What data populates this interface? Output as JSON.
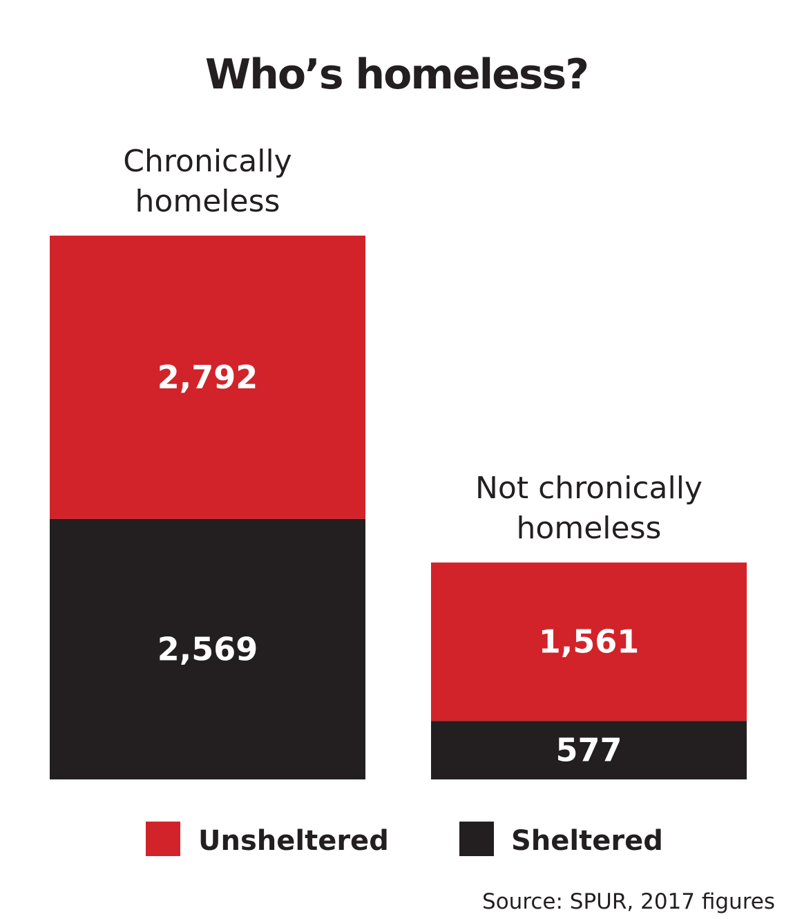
{
  "chart_data": {
    "type": "bar",
    "stacked": true,
    "title": "Who’s homeless?",
    "categories": [
      [
        "Chronically",
        "homeless"
      ],
      [
        "Not chronically",
        "homeless"
      ]
    ],
    "series": [
      {
        "name": "Sheltered",
        "values": [
          2569,
          577
        ],
        "value_labels": [
          "2,569",
          "577"
        ],
        "color": "#231f20"
      },
      {
        "name": "Unsheltered",
        "values": [
          2792,
          1561
        ],
        "value_labels": [
          "2,792",
          "1,561"
        ],
        "color": "#d2232a"
      }
    ],
    "legend": {
      "placement": "bottom",
      "entries": [
        "Unsheltered",
        "Sheltered"
      ]
    },
    "grid": false,
    "source": "Source: SPUR, 2017 figures"
  }
}
